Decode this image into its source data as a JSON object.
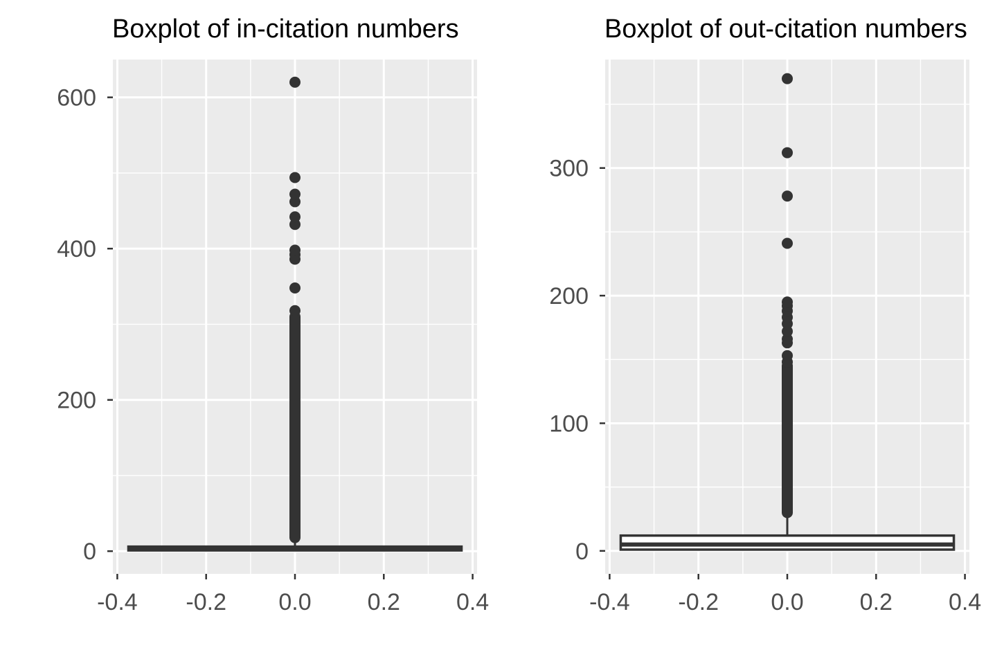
{
  "chart_data": [
    {
      "type": "boxplot",
      "title": "Boxplot of in-citation numbers",
      "xlabel": "",
      "ylabel": "",
      "xlim": [
        -0.41,
        0.41
      ],
      "ylim": [
        -30,
        650
      ],
      "x_ticks": [
        -0.4,
        -0.2,
        0.0,
        0.2,
        0.4
      ],
      "x_tick_labels": [
        "-0.4",
        "-0.2",
        "0.0",
        "0.2",
        "0.4"
      ],
      "y_ticks": [
        0,
        200,
        400,
        600
      ],
      "y_tick_labels": [
        "0",
        "200",
        "400",
        "600"
      ],
      "grid": true,
      "box": {
        "x": 0.0,
        "width": 0.75,
        "min": 0,
        "q1": 1,
        "median": 3,
        "q3": 6,
        "whisker_high": 14
      },
      "outlier_range": [
        18,
        310
      ],
      "outliers": [
        318,
        348,
        386,
        392,
        398,
        432,
        442,
        462,
        472,
        494,
        620
      ]
    },
    {
      "type": "boxplot",
      "title": "Boxplot of out-citation numbers",
      "xlabel": "",
      "ylabel": "",
      "xlim": [
        -0.41,
        0.41
      ],
      "ylim": [
        -18,
        385
      ],
      "x_ticks": [
        -0.4,
        -0.2,
        0.0,
        0.2,
        0.4
      ],
      "x_tick_labels": [
        "-0.4",
        "-0.2",
        "0.0",
        "0.2",
        "0.4"
      ],
      "y_ticks": [
        0,
        100,
        200,
        300
      ],
      "y_tick_labels": [
        "0",
        "100",
        "200",
        "300"
      ],
      "grid": true,
      "box": {
        "x": 0.0,
        "width": 0.75,
        "min": 0,
        "q1": 1,
        "median": 5,
        "q3": 12,
        "whisker_high": 29
      },
      "outlier_range": [
        30,
        145
      ],
      "outliers": [
        148,
        153,
        163,
        166,
        172,
        178,
        183,
        188,
        192,
        195,
        241,
        278,
        312,
        370
      ]
    }
  ]
}
